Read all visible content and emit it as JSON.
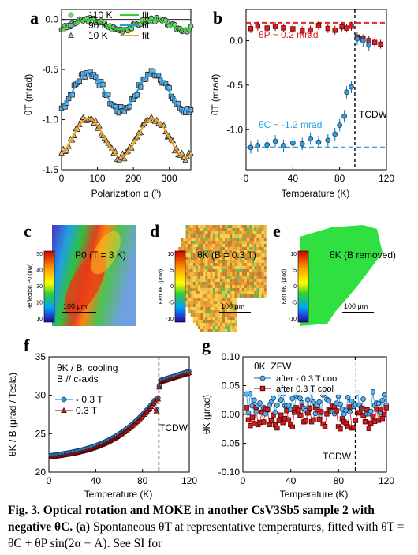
{
  "panels": {
    "a": {
      "letter": "a",
      "ylabel": "θT (mrad)",
      "xlabel": "Polarization α (º)",
      "xlim": [
        0,
        360
      ],
      "ylim": [
        -1.5,
        0.1
      ],
      "xticks": [
        "0",
        "100",
        "200",
        "300"
      ],
      "yticks": [
        "0.0",
        "-0.5",
        "-1.0",
        "-1.5"
      ],
      "legend": [
        {
          "label": "110 K",
          "fit": "fit",
          "marker": "circle",
          "color": "#3cb043",
          "fit_color": "#33cc33"
        },
        {
          "label": "90 K",
          "fit": "fit",
          "marker": "square",
          "color": "#3f8fd0",
          "fit_color": "#2a9ad8"
        },
        {
          "label": "10 K",
          "fit": "fit",
          "marker": "triangle",
          "color": "#c28a2a",
          "fit_color": "#f0a020"
        }
      ]
    },
    "b": {
      "letter": "b",
      "ylabel": "θT (mrad)",
      "xlabel": "Temperature (K)",
      "xticks": [
        "0",
        "40",
        "80",
        "120"
      ],
      "yticks": [
        "0.0",
        "-0.5",
        "-1.0"
      ],
      "annotation_p": "θP ~ 0.2 mrad",
      "annotation_c": "θC ~ -1.2 mrad",
      "tcdw": "TCDW"
    },
    "c": {
      "letter": "c",
      "cbar_label": "Reflection P0 (uW)",
      "cbar_ticks": [
        "10",
        "20",
        "30",
        "40",
        "50"
      ],
      "title": "P0 (T = 3 K)",
      "scale": "100 μm"
    },
    "d": {
      "letter": "d",
      "cbar_label": "Kerr θK (μrad)",
      "cbar_ticks": [
        "10",
        "5",
        "0",
        "-5",
        "-10"
      ],
      "title": "θK (B = 0.3 T)",
      "scale": "100 μm"
    },
    "e": {
      "letter": "e",
      "cbar_label": "Kerr θK (μrad)",
      "cbar_ticks": [
        "10",
        "5",
        "0",
        "-5",
        "-10"
      ],
      "title": "θK (B removed)",
      "scale": "100 μm"
    },
    "f": {
      "letter": "f",
      "ylabel": "θK / B (μrad / Tesla)",
      "xlabel": "Temperature (K)",
      "xticks": [
        "0",
        "40",
        "80",
        "120"
      ],
      "yticks": [
        "35",
        "30",
        "25",
        "20"
      ],
      "note1": "θK / B, cooling",
      "note2": "B // c-axis",
      "legend": [
        {
          "label": "- 0.3 T"
        },
        {
          "label": "0.3 T"
        }
      ],
      "tcdw": "TCDW"
    },
    "g": {
      "letter": "g",
      "ylabel": "θK (μrad)",
      "xlabel": "Temperature (K)",
      "xticks": [
        "0",
        "40",
        "80",
        "120"
      ],
      "yticks": [
        "0.10",
        "0.05",
        "0.00",
        "-0.05",
        "-0.10"
      ],
      "note": "θK, ZFW",
      "legend": [
        {
          "label": "after - 0.3 T cool"
        },
        {
          "label": "after 0.3 T cool"
        }
      ],
      "tcdw": "TCDW"
    }
  },
  "caption": {
    "bold": "Fig. 3. Optical rotation and MOKE in another CsV3Sb5 sample 2 with negative θC.",
    "text_a": "(a)",
    "text": "Spontaneous θT at representative temperatures, fitted with θT = θC + θP sin(2α − A). See SI for"
  }
}
